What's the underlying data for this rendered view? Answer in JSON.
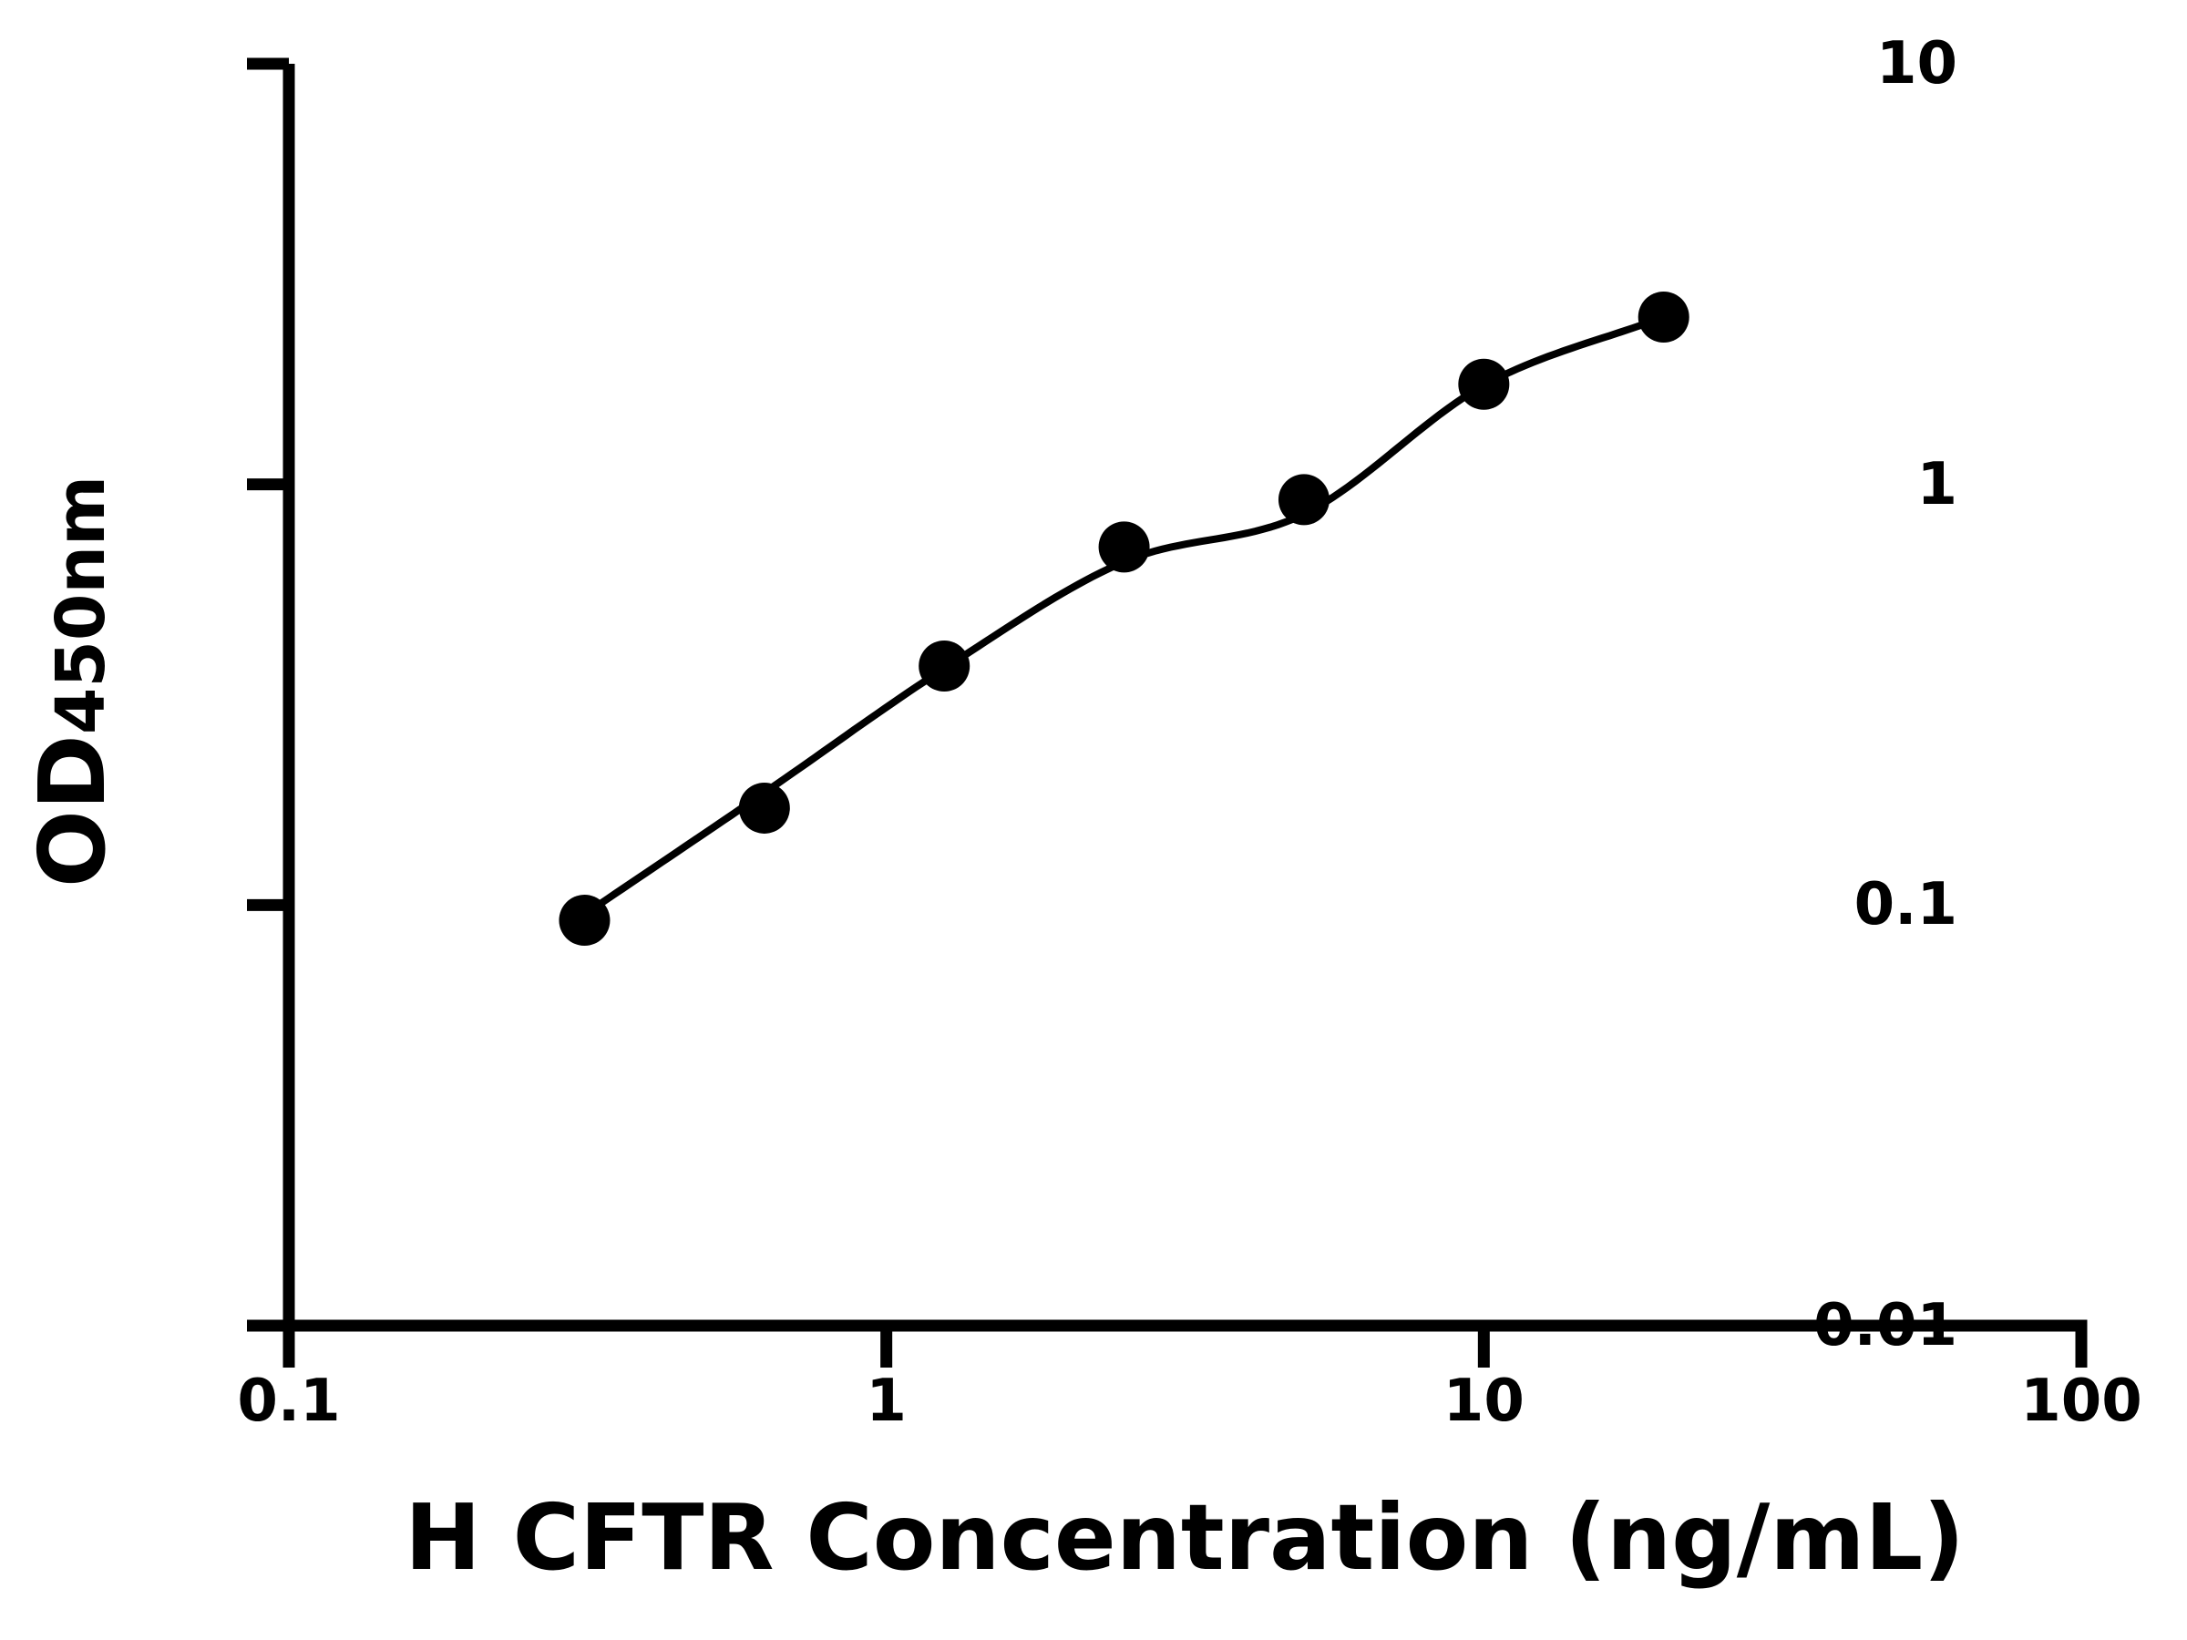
{
  "chart_data": {
    "type": "scatter",
    "subtype": "standard-curve-with-fitted-line",
    "title": "",
    "xlabel": "H CFTR Concentration (ng/mL)",
    "ylabel": "OD450nm",
    "ylabel_main": "OD",
    "ylabel_sub": "450nm",
    "x_scale": "log10",
    "y_scale": "log10",
    "xlim": [
      0.1,
      100
    ],
    "ylim": [
      0.01,
      10
    ],
    "grid": false,
    "legend": null,
    "x_ticks": [
      {
        "value": 0.1,
        "label": "0.1"
      },
      {
        "value": 1,
        "label": "1"
      },
      {
        "value": 10,
        "label": "10"
      },
      {
        "value": 100,
        "label": "100"
      }
    ],
    "y_ticks": [
      {
        "value": 0.01,
        "label": "0.01"
      },
      {
        "value": 0.1,
        "label": "0.1"
      },
      {
        "value": 1,
        "label": "1"
      },
      {
        "value": 10,
        "label": "10"
      }
    ],
    "points": [
      {
        "x": 0.3125,
        "y": 0.092
      },
      {
        "x": 0.625,
        "y": 0.17
      },
      {
        "x": 1.25,
        "y": 0.37
      },
      {
        "x": 2.5,
        "y": 0.71
      },
      {
        "x": 5,
        "y": 0.92
      },
      {
        "x": 10,
        "y": 1.73
      },
      {
        "x": 20,
        "y": 2.5
      }
    ],
    "fit_curve_anchors": [
      {
        "x": 0.3125,
        "y": 0.095
      },
      {
        "x": 0.625,
        "y": 0.185
      },
      {
        "x": 1.25,
        "y": 0.365
      },
      {
        "x": 2.5,
        "y": 0.655
      },
      {
        "x": 5,
        "y": 0.85
      },
      {
        "x": 10,
        "y": 1.72
      },
      {
        "x": 20,
        "y": 2.5
      }
    ],
    "colors": {
      "background": "#ffffff",
      "axis": "#000000",
      "curve": "#000000",
      "marker": "#000000",
      "text": "#000000"
    },
    "marker_diameter_px": 56
  }
}
